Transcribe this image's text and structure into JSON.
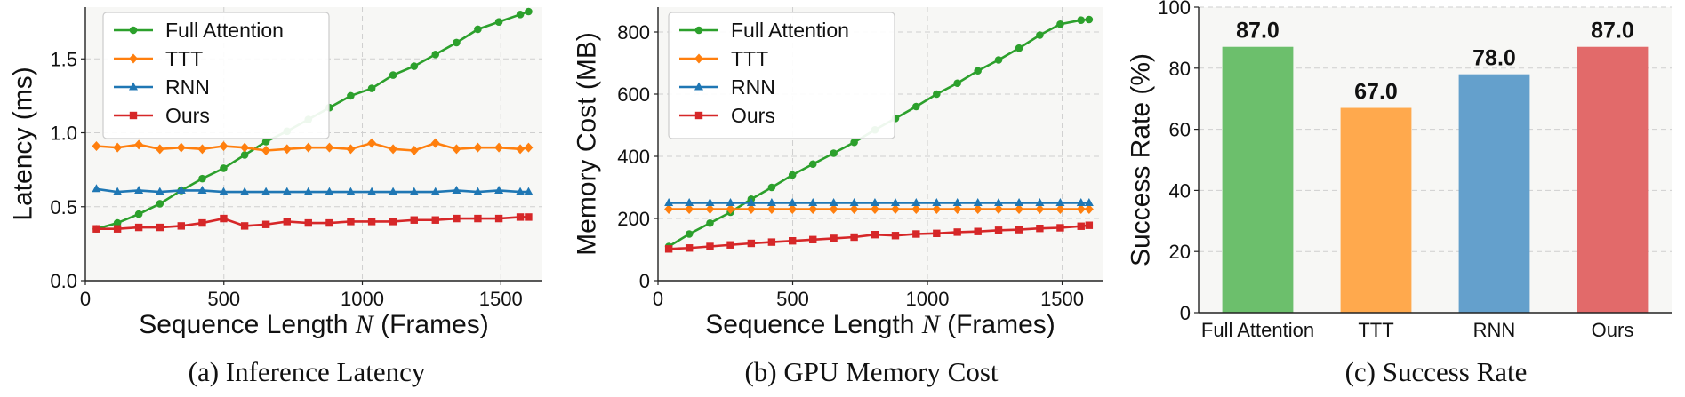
{
  "chart_data": [
    {
      "type": "line",
      "caption": "(a) Inference Latency",
      "xlabel": "Sequence Length N (Frames)",
      "xlabel_parts": [
        "Sequence Length ",
        "N",
        " (Frames)"
      ],
      "ylabel": "Latency (ms)",
      "xlim": [
        0,
        1650
      ],
      "ylim": [
        0,
        1.85
      ],
      "xticks": [
        0,
        500,
        1000,
        1500
      ],
      "yticks": [
        0.0,
        0.5,
        1.0,
        1.5
      ],
      "ytick_labels": [
        "0.0",
        "0.5",
        "1.0",
        "1.5"
      ],
      "grid": true,
      "legend_position": "top-left",
      "x": [
        40,
        116,
        193,
        269,
        346,
        422,
        499,
        575,
        652,
        728,
        805,
        881,
        958,
        1034,
        1111,
        1187,
        1264,
        1340,
        1417,
        1493,
        1570,
        1600
      ],
      "series": [
        {
          "name": "Full Attention",
          "color": "#2ca02c",
          "marker": "circle",
          "values": [
            0.35,
            0.39,
            0.45,
            0.52,
            0.61,
            0.69,
            0.76,
            0.85,
            0.94,
            1.01,
            1.09,
            1.17,
            1.25,
            1.3,
            1.39,
            1.45,
            1.53,
            1.61,
            1.7,
            1.75,
            1.8,
            1.82
          ]
        },
        {
          "name": "TTT",
          "color": "#ff7f0e",
          "marker": "diamond",
          "values": [
            0.91,
            0.9,
            0.92,
            0.89,
            0.9,
            0.89,
            0.91,
            0.9,
            0.88,
            0.89,
            0.9,
            0.9,
            0.89,
            0.93,
            0.89,
            0.88,
            0.93,
            0.89,
            0.9,
            0.9,
            0.89,
            0.9
          ]
        },
        {
          "name": "RNN",
          "color": "#1f77b4",
          "marker": "triangle",
          "values": [
            0.62,
            0.6,
            0.61,
            0.6,
            0.61,
            0.61,
            0.6,
            0.6,
            0.6,
            0.6,
            0.6,
            0.6,
            0.6,
            0.6,
            0.6,
            0.6,
            0.6,
            0.61,
            0.6,
            0.61,
            0.6,
            0.6
          ]
        },
        {
          "name": "Ours",
          "color": "#d62728",
          "marker": "square",
          "values": [
            0.35,
            0.35,
            0.36,
            0.36,
            0.37,
            0.39,
            0.42,
            0.37,
            0.38,
            0.4,
            0.39,
            0.39,
            0.4,
            0.4,
            0.4,
            0.41,
            0.41,
            0.42,
            0.42,
            0.42,
            0.43,
            0.43
          ]
        }
      ]
    },
    {
      "type": "line",
      "caption": "(b) GPU Memory Cost",
      "xlabel": "Sequence Length N (Frames)",
      "xlabel_parts": [
        "Sequence Length ",
        "N",
        " (Frames)"
      ],
      "ylabel": "Memory Cost (MB)",
      "xlim": [
        0,
        1650
      ],
      "ylim": [
        0,
        880
      ],
      "xticks": [
        0,
        500,
        1000,
        1500
      ],
      "yticks": [
        0,
        200,
        400,
        600,
        800
      ],
      "ytick_labels": [
        "0",
        "200",
        "400",
        "600",
        "800"
      ],
      "grid": true,
      "legend_position": "top-left",
      "x": [
        40,
        116,
        193,
        269,
        346,
        422,
        499,
        575,
        652,
        728,
        805,
        881,
        958,
        1034,
        1111,
        1187,
        1264,
        1340,
        1417,
        1493,
        1570,
        1600
      ],
      "series": [
        {
          "name": "Full Attention",
          "color": "#2ca02c",
          "marker": "circle",
          "values": [
            110,
            150,
            185,
            220,
            262,
            300,
            340,
            375,
            410,
            445,
            485,
            522,
            560,
            600,
            635,
            675,
            710,
            748,
            790,
            825,
            838,
            840
          ]
        },
        {
          "name": "TTT",
          "color": "#ff7f0e",
          "marker": "diamond",
          "values": [
            230,
            230,
            230,
            230,
            230,
            230,
            230,
            230,
            230,
            230,
            230,
            230,
            230,
            230,
            230,
            230,
            230,
            230,
            230,
            230,
            230,
            230
          ]
        },
        {
          "name": "RNN",
          "color": "#1f77b4",
          "marker": "triangle",
          "values": [
            250,
            250,
            250,
            250,
            250,
            250,
            250,
            250,
            250,
            250,
            250,
            250,
            250,
            250,
            250,
            250,
            250,
            250,
            250,
            250,
            250,
            250
          ]
        },
        {
          "name": "Ours",
          "color": "#d62728",
          "marker": "square",
          "values": [
            102,
            105,
            110,
            115,
            120,
            124,
            128,
            132,
            136,
            140,
            148,
            145,
            150,
            152,
            156,
            158,
            162,
            164,
            168,
            170,
            175,
            178
          ]
        }
      ]
    },
    {
      "type": "bar",
      "caption": "(c) Success Rate",
      "ylabel": "Success Rate (%)",
      "ylim": [
        0,
        100
      ],
      "yticks": [
        0,
        20,
        40,
        60,
        80,
        100
      ],
      "categories": [
        "Full Attention",
        "TTT",
        "RNN",
        "Ours"
      ],
      "values": [
        87.0,
        67.0,
        78.0,
        87.0
      ],
      "value_labels": [
        "87.0",
        "67.0",
        "78.0",
        "87.0"
      ],
      "colors": [
        "#6cbf6c",
        "#ffa94d",
        "#64a0cc",
        "#e26a6a"
      ],
      "grid": true
    }
  ]
}
